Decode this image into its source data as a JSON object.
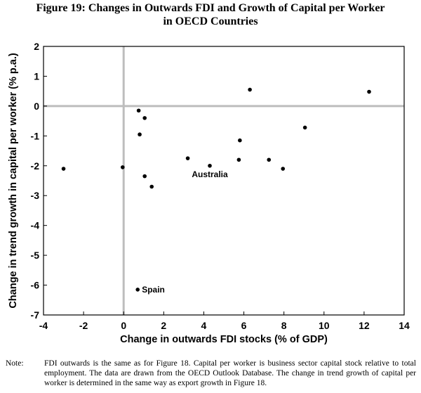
{
  "figure": {
    "title_line1": "Figure 19: Changes in Outwards FDI and Growth of Capital per Worker",
    "title_line2": "in OECD Countries"
  },
  "chart_data": {
    "type": "scatter",
    "title": "Changes in Outwards FDI and Growth of Capital per Worker in OECD Countries",
    "xlabel": "Change in outwards FDI stocks (% of GDP)",
    "ylabel": "Change in trend growth in capital per worker (% p.a.)",
    "xlim": [
      -4,
      14
    ],
    "ylim": [
      -7,
      2
    ],
    "xticks": [
      -4,
      -2,
      0,
      2,
      4,
      6,
      8,
      10,
      12,
      14
    ],
    "yticks": [
      2,
      1,
      0,
      -1,
      -2,
      -3,
      -4,
      -5,
      -6,
      -7
    ],
    "grid": false,
    "reference_lines": {
      "x": 0,
      "y": 0
    },
    "points": [
      {
        "x": -3.0,
        "y": -2.1,
        "label": ""
      },
      {
        "x": -0.05,
        "y": -2.05,
        "label": ""
      },
      {
        "x": 0.7,
        "y": -6.15,
        "label": "Spain"
      },
      {
        "x": 0.75,
        "y": -0.15,
        "label": ""
      },
      {
        "x": 0.8,
        "y": -0.95,
        "label": ""
      },
      {
        "x": 1.05,
        "y": -0.4,
        "label": ""
      },
      {
        "x": 1.05,
        "y": -2.35,
        "label": ""
      },
      {
        "x": 1.4,
        "y": -2.7,
        "label": ""
      },
      {
        "x": 3.2,
        "y": -1.75,
        "label": ""
      },
      {
        "x": 4.3,
        "y": -2.0,
        "label": "Australia"
      },
      {
        "x": 5.75,
        "y": -1.8,
        "label": ""
      },
      {
        "x": 5.8,
        "y": -1.15,
        "label": ""
      },
      {
        "x": 6.3,
        "y": 0.55,
        "label": ""
      },
      {
        "x": 7.25,
        "y": -1.8,
        "label": ""
      },
      {
        "x": 7.95,
        "y": -2.1,
        "label": ""
      },
      {
        "x": 9.05,
        "y": -0.72,
        "label": ""
      },
      {
        "x": 12.25,
        "y": 0.48,
        "label": ""
      }
    ]
  },
  "note": {
    "label": "Note:",
    "text": "FDI outwards is the same as for Figure 18. Capital per worker is business sector capital stock relative to total employment. The data are drawn from the OECD Outlook Database. The change in trend growth of capital per worker is determined in the same way as export growth in Figure 18."
  }
}
